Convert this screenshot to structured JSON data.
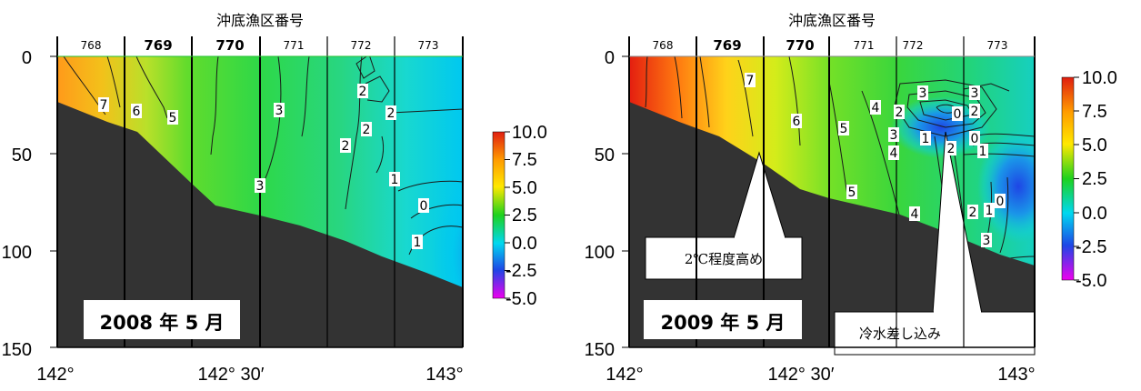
{
  "chart_data": [
    {
      "type": "heatmap",
      "title": "2008 年 5 月",
      "top_axis_title": "沖底漁区番号",
      "top_labels": [
        {
          "label": "768",
          "bold": false
        },
        {
          "label": "769",
          "bold": true
        },
        {
          "label": "770",
          "bold": true
        },
        {
          "label": "771",
          "bold": false
        },
        {
          "label": "772",
          "bold": false
        },
        {
          "label": "773",
          "bold": false
        }
      ],
      "x_ticks": [
        "142°",
        "142° 30′",
        "143°"
      ],
      "y_ticks": [
        "0",
        "50",
        "100",
        "150"
      ],
      "ylim": [
        150,
        0
      ],
      "colorbar": {
        "ticks": [
          "10.0",
          "7.5",
          "5.0",
          "2.5",
          "0.0",
          "-2.5",
          "-5.0"
        ],
        "range": [
          -5,
          10
        ]
      },
      "contour_labels": [
        "7",
        "6",
        "5",
        "3",
        "2",
        "2",
        "2",
        "2",
        "3",
        "1",
        "0",
        "1"
      ],
      "annotations": []
    },
    {
      "type": "heatmap",
      "title": "2009 年 5 月",
      "top_axis_title": "沖底漁区番号",
      "top_labels": [
        {
          "label": "768",
          "bold": false
        },
        {
          "label": "769",
          "bold": true
        },
        {
          "label": "770",
          "bold": true
        },
        {
          "label": "771",
          "bold": false
        },
        {
          "label": "772",
          "bold": false
        },
        {
          "label": "773",
          "bold": false
        }
      ],
      "x_ticks": [
        "142°",
        "142° 30′",
        "143°"
      ],
      "y_ticks": [
        "0",
        "50",
        "100",
        "150"
      ],
      "ylim": [
        150,
        0
      ],
      "colorbar": {
        "ticks": [
          "10.0",
          "7.5",
          "5.0",
          "2.5",
          "0.0",
          "-2.5",
          "-5.0"
        ],
        "range": [
          -5,
          10
        ]
      },
      "contour_labels": [
        "7",
        "6",
        "5",
        "4",
        "3",
        "3",
        "2",
        "0",
        "2",
        "1",
        "2",
        "0",
        "1",
        "3",
        "4",
        "5",
        "4",
        "0",
        "2",
        "1",
        "3"
      ],
      "annotations": [
        "2℃程度高め",
        "冷水差し込み"
      ]
    }
  ]
}
